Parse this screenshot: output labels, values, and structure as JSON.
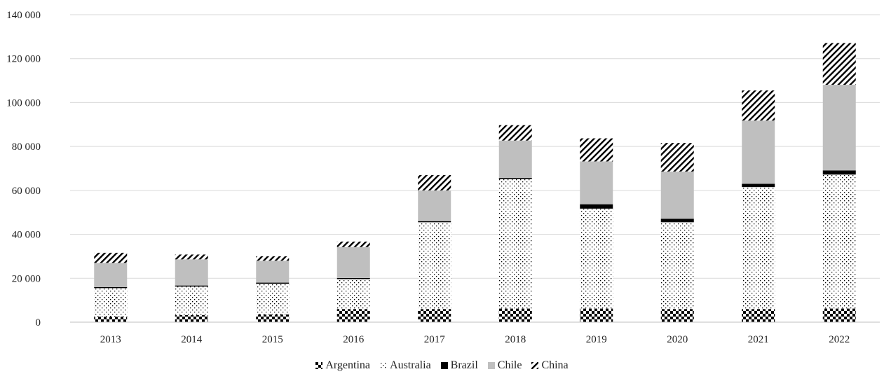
{
  "chart_data": {
    "type": "bar",
    "stacked": true,
    "categories": [
      "2013",
      "2014",
      "2015",
      "2016",
      "2017",
      "2018",
      "2019",
      "2020",
      "2021",
      "2022"
    ],
    "series": [
      {
        "name": "Argentina",
        "pattern": "checker",
        "color": "#000000",
        "values": [
          2500,
          3200,
          3500,
          6000,
          6000,
          6200,
          6200,
          6000,
          6000,
          6200
        ]
      },
      {
        "name": "Australia",
        "pattern": "dots",
        "color": "#000000",
        "values": [
          13000,
          13000,
          14000,
          13600,
          39500,
          59000,
          45500,
          39500,
          55500,
          61000
        ]
      },
      {
        "name": "Brazil",
        "pattern": "solid",
        "color": "#000000",
        "values": [
          500,
          500,
          500,
          500,
          500,
          500,
          2000,
          1600,
          1500,
          1900
        ]
      },
      {
        "name": "Chile",
        "pattern": "solid",
        "color": "#bfbfbf",
        "values": [
          11000,
          11900,
          10000,
          14100,
          14000,
          17000,
          19500,
          21500,
          28800,
          39000
        ]
      },
      {
        "name": "China",
        "pattern": "hatch",
        "color": "#000000",
        "values": [
          4600,
          2200,
          2000,
          2500,
          7000,
          7000,
          10500,
          13000,
          13700,
          19000
        ]
      }
    ],
    "y_ticks": [
      "0",
      "20 000",
      "40 000",
      "60 000",
      "80 000",
      "100 000",
      "120 000",
      "140 000"
    ],
    "ylim": [
      0,
      140000
    ],
    "grid": true,
    "legend_position": "bottom",
    "title": "",
    "xlabel": "",
    "ylabel": ""
  }
}
